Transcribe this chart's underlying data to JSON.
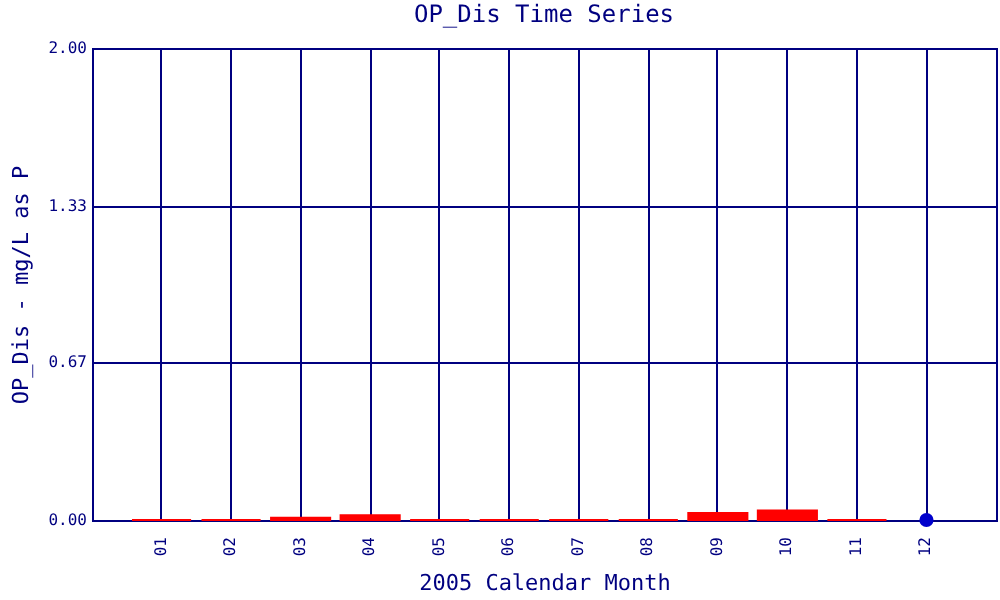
{
  "chart_data": {
    "type": "bar",
    "title": "OP_Dis Time Series",
    "xlabel": "2005 Calendar Month",
    "ylabel": "OP_Dis - mg/L as P",
    "categories": [
      "01",
      "02",
      "03",
      "04",
      "05",
      "06",
      "07",
      "08",
      "09",
      "10",
      "11",
      "12"
    ],
    "series": [
      {
        "color": "#ff0000",
        "values": [
          0,
          0,
          0.01,
          0.02,
          0,
          0,
          0,
          0,
          0.03,
          0.04,
          0,
          null
        ]
      },
      {
        "type": "scatter",
        "color": "#0000cc",
        "x": [
          "12"
        ],
        "values": [
          0
        ]
      }
    ],
    "ylim": [
      0,
      2
    ],
    "yticks": [
      {
        "value": 0,
        "label": "0.00"
      },
      {
        "value": 0.67,
        "label": "0.67"
      },
      {
        "value": 1.33,
        "label": "1.33"
      },
      {
        "value": 2,
        "label": "2.00"
      }
    ],
    "grid": true,
    "marker": "circle"
  }
}
